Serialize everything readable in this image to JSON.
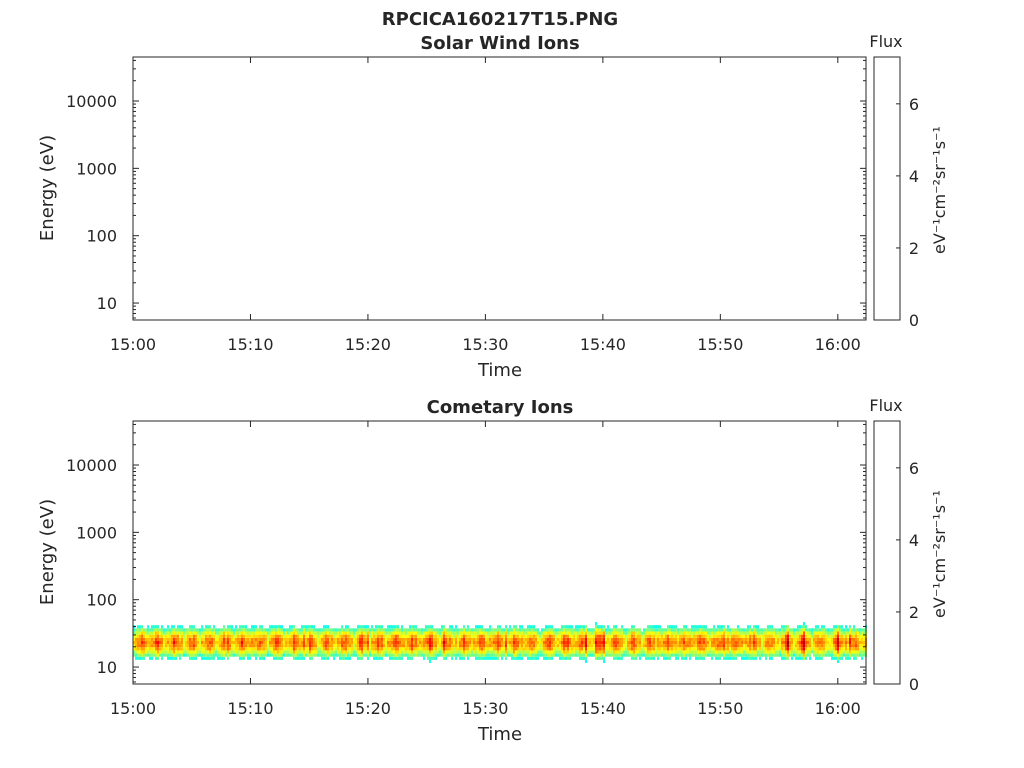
{
  "figure": {
    "title": "RPCICA160217T15.PNG"
  },
  "chart_data": [
    {
      "type": "heatmap",
      "title": "Solar Wind Ions",
      "xlabel": "Time",
      "ylabel": "Energy (eV)",
      "x_ticks": [
        "15:00",
        "15:10",
        "15:20",
        "15:30",
        "15:40",
        "15:50",
        "16:00"
      ],
      "x_tick_minutes": [
        0,
        10,
        20,
        30,
        40,
        50,
        60
      ],
      "xlim_minutes": [
        0,
        62.4
      ],
      "y_scale": "log",
      "ylim": [
        5.6,
        45000
      ],
      "y_ticks": [
        {
          "value": 10,
          "label": "10"
        },
        {
          "value": 100,
          "label": "100"
        },
        {
          "value": 1000,
          "label": "1000"
        },
        {
          "value": 10000,
          "label": "10000"
        }
      ],
      "colorbar": {
        "title": "Flux",
        "label": "eV⁻¹cm⁻²sr⁻¹s⁻¹",
        "range": [
          0,
          7.3
        ],
        "ticks": [
          {
            "value": 0,
            "label": "0"
          },
          {
            "value": 2,
            "label": "2"
          },
          {
            "value": 4,
            "label": "4"
          },
          {
            "value": 6,
            "label": "6"
          }
        ],
        "colormap": "jet"
      },
      "data_description": "empty",
      "grid": false
    },
    {
      "type": "heatmap",
      "title": "Cometary Ions",
      "xlabel": "Time",
      "ylabel": "Energy (eV)",
      "x_ticks": [
        "15:00",
        "15:10",
        "15:20",
        "15:30",
        "15:40",
        "15:50",
        "16:00"
      ],
      "x_tick_minutes": [
        0,
        10,
        20,
        30,
        40,
        50,
        60
      ],
      "xlim_minutes": [
        0,
        62.4
      ],
      "y_scale": "log",
      "ylim": [
        5.6,
        45000
      ],
      "y_ticks": [
        {
          "value": 10,
          "label": "10"
        },
        {
          "value": 100,
          "label": "100"
        },
        {
          "value": 1000,
          "label": "1000"
        },
        {
          "value": 10000,
          "label": "10000"
        }
      ],
      "colorbar": {
        "title": "Flux",
        "label": "eV⁻¹cm⁻²sr⁻¹s⁻¹",
        "range": [
          0,
          7.3
        ],
        "ticks": [
          {
            "value": 0,
            "label": "0"
          },
          {
            "value": 2,
            "label": "2"
          },
          {
            "value": 4,
            "label": "4"
          },
          {
            "value": 6,
            "label": "6"
          }
        ],
        "colormap": "jet"
      },
      "band": {
        "peak_energy_ev": 23,
        "peak_flux": 6.3,
        "min_energy_ev": 6,
        "max_energy_ev": 80
      },
      "grid": false
    }
  ]
}
